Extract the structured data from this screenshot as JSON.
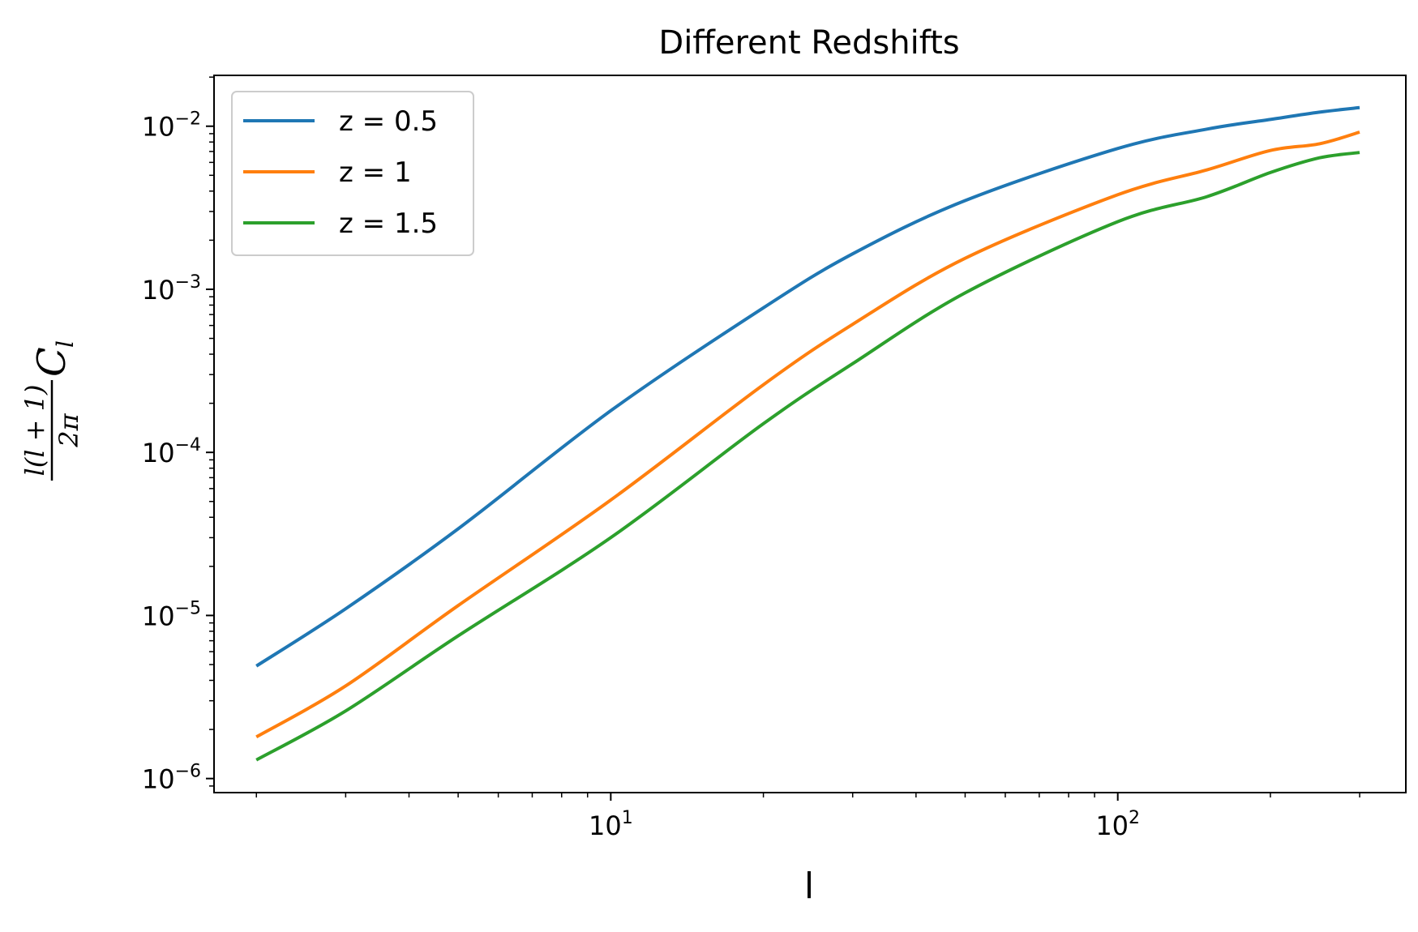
{
  "chart_data": {
    "type": "line",
    "title": "Different Redshifts",
    "xlabel": "l",
    "ylabel": {
      "numerator": "l(l + 1)",
      "denominator": "2π",
      "symbol": "C",
      "subscript": "l"
    },
    "xscale": "log",
    "yscale": "log",
    "xlim": [
      1.65,
      370
    ],
    "ylim": [
      8.2e-07,
      0.0205
    ],
    "x_ticks": [
      {
        "value": 10,
        "base": "10",
        "exp": "1"
      },
      {
        "value": 100,
        "base": "10",
        "exp": "2"
      }
    ],
    "y_ticks": [
      {
        "value": 1e-06,
        "base": "10",
        "exp": "−6"
      },
      {
        "value": 1e-05,
        "base": "10",
        "exp": "−5"
      },
      {
        "value": 0.0001,
        "base": "10",
        "exp": "−4"
      },
      {
        "value": 0.001,
        "base": "10",
        "exp": "−3"
      },
      {
        "value": 0.01,
        "base": "10",
        "exp": "−2"
      }
    ],
    "grid": false,
    "legend_position": "upper-left",
    "x": [
      2,
      3,
      5,
      10,
      20,
      30,
      50,
      100,
      150,
      200,
      250,
      300
    ],
    "series": [
      {
        "name": "z = 0.5",
        "color": "#1f77b4",
        "values": [
          4.9e-06,
          1.1e-05,
          3.4e-05,
          0.00018,
          0.00077,
          0.00165,
          0.0035,
          0.0073,
          0.0096,
          0.011,
          0.0122,
          0.013
        ]
      },
      {
        "name": "z = 1",
        "color": "#ff7f0e",
        "values": [
          1.8e-06,
          3.7e-06,
          1.15e-05,
          5.1e-05,
          0.00026,
          0.00061,
          0.00155,
          0.0038,
          0.0054,
          0.0071,
          0.0078,
          0.0092
        ]
      },
      {
        "name": "z = 1.5",
        "color": "#2ca02c",
        "values": [
          1.3e-06,
          2.6e-06,
          7.5e-06,
          3e-05,
          0.00015,
          0.00035,
          0.00095,
          0.0026,
          0.0037,
          0.0052,
          0.0064,
          0.0069
        ]
      }
    ]
  }
}
